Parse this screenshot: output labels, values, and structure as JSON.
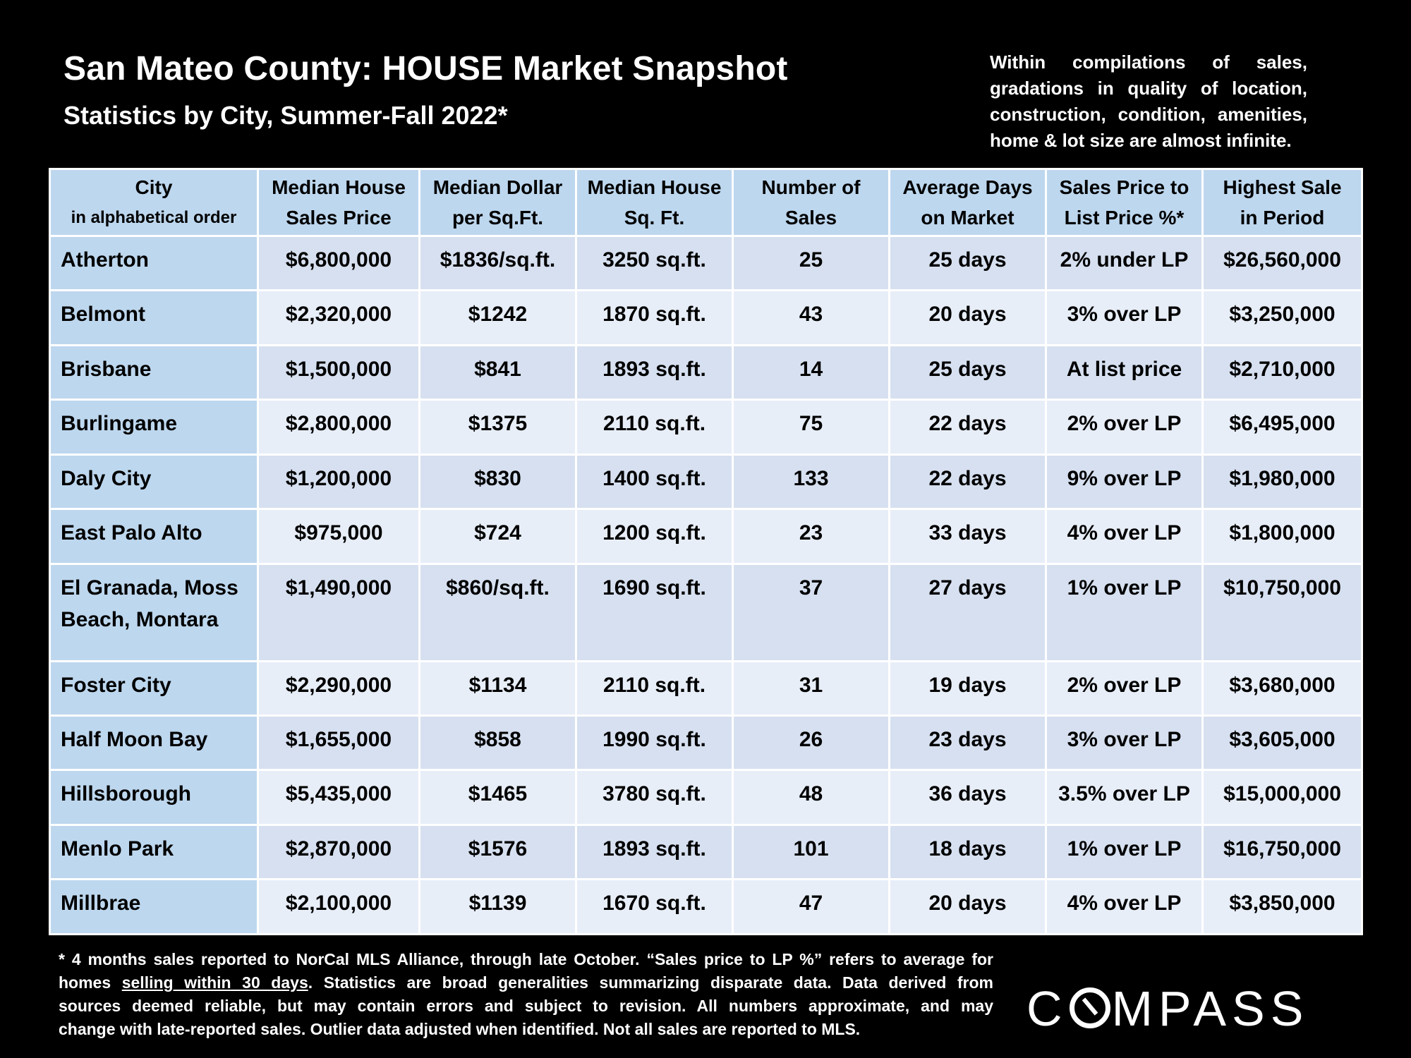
{
  "title": "San Mateo County: HOUSE Market Snapshot",
  "subtitle": "Statistics by City, Summer-Fall 2022*",
  "side_note_lines": [
    "Within compilations of sales,",
    "gradations in quality of location,",
    "construction, condition, amenities,",
    "home & lot size are almost infinite."
  ],
  "table": {
    "headers": [
      {
        "line1": "City",
        "line2": "in alphabetical order"
      },
      {
        "line1": "Median House",
        "line2": "Sales Price"
      },
      {
        "line1": "Median Dollar",
        "line2": "per Sq.Ft."
      },
      {
        "line1": "Median House",
        "line2": "Sq. Ft."
      },
      {
        "line1": "Number of",
        "line2": "Sales"
      },
      {
        "line1": "Average Days",
        "line2": "on Market"
      },
      {
        "line1": "Sales Price to",
        "line2": "List Price %*"
      },
      {
        "line1": "Highest Sale",
        "line2": "in Period"
      }
    ],
    "rows": [
      [
        "Atherton",
        "$6,800,000",
        "$1836/sq.ft.",
        "3250 sq.ft.",
        "25",
        "25 days",
        "2% under LP",
        "$26,560,000"
      ],
      [
        "Belmont",
        "$2,320,000",
        "$1242",
        "1870 sq.ft.",
        "43",
        "20 days",
        "3% over LP",
        "$3,250,000"
      ],
      [
        "Brisbane",
        "$1,500,000",
        "$841",
        "1893 sq.ft.",
        "14",
        "25 days",
        "At list price",
        "$2,710,000"
      ],
      [
        "Burlingame",
        "$2,800,000",
        "$1375",
        "2110 sq.ft.",
        "75",
        "22 days",
        "2% over LP",
        "$6,495,000"
      ],
      [
        "Daly City",
        "$1,200,000",
        "$830",
        "1400 sq.ft.",
        "133",
        "22 days",
        "9% over LP",
        "$1,980,000"
      ],
      [
        "East Palo Alto",
        "$975,000",
        "$724",
        "1200 sq.ft.",
        "23",
        "33 days",
        "4% over LP",
        "$1,800,000"
      ],
      [
        "El Granada, Moss Beach, Montara",
        "$1,490,000",
        "$860/sq.ft.",
        "1690 sq.ft.",
        "37",
        "27 days",
        "1% over LP",
        "$10,750,000"
      ],
      [
        "Foster City",
        "$2,290,000",
        "$1134",
        "2110 sq.ft.",
        "31",
        "19 days",
        "2% over LP",
        "$3,680,000"
      ],
      [
        "Half Moon Bay",
        "$1,655,000",
        "$858",
        "1990 sq.ft.",
        "26",
        "23 days",
        "3% over LP",
        "$3,605,000"
      ],
      [
        "Hillsborough",
        "$5,435,000",
        "$1465",
        "3780 sq.ft.",
        "48",
        "36 days",
        "3.5% over LP",
        "$15,000,000"
      ],
      [
        "Menlo Park",
        "$2,870,000",
        "$1576",
        "1893 sq.ft.",
        "101",
        "18 days",
        "1% over LP",
        "$16,750,000"
      ],
      [
        "Millbrae",
        "$2,100,000",
        "$1139",
        "1670 sq.ft.",
        "47",
        "20 days",
        "4% over LP",
        "$3,850,000"
      ]
    ]
  },
  "footnote": {
    "line1": "* 4 months sales reported to NorCal MLS Alliance, through late October. “Sales price to LP %” refers to average for",
    "line2_pre": "homes ",
    "line2_underlined": "selling within 30 days",
    "line2_post": ". Statistics are broad generalities summarizing disparate data. Data derived from",
    "line3": "sources deemed reliable, but may contain errors and subject to revision. All numbers approximate, and may",
    "line4": "change with late-reported sales. Outlier data adjusted when identified. Not all sales are reported to MLS."
  },
  "logo": {
    "text_before": "C",
    "text_after": "MPASS",
    "full": "COMPASS"
  }
}
